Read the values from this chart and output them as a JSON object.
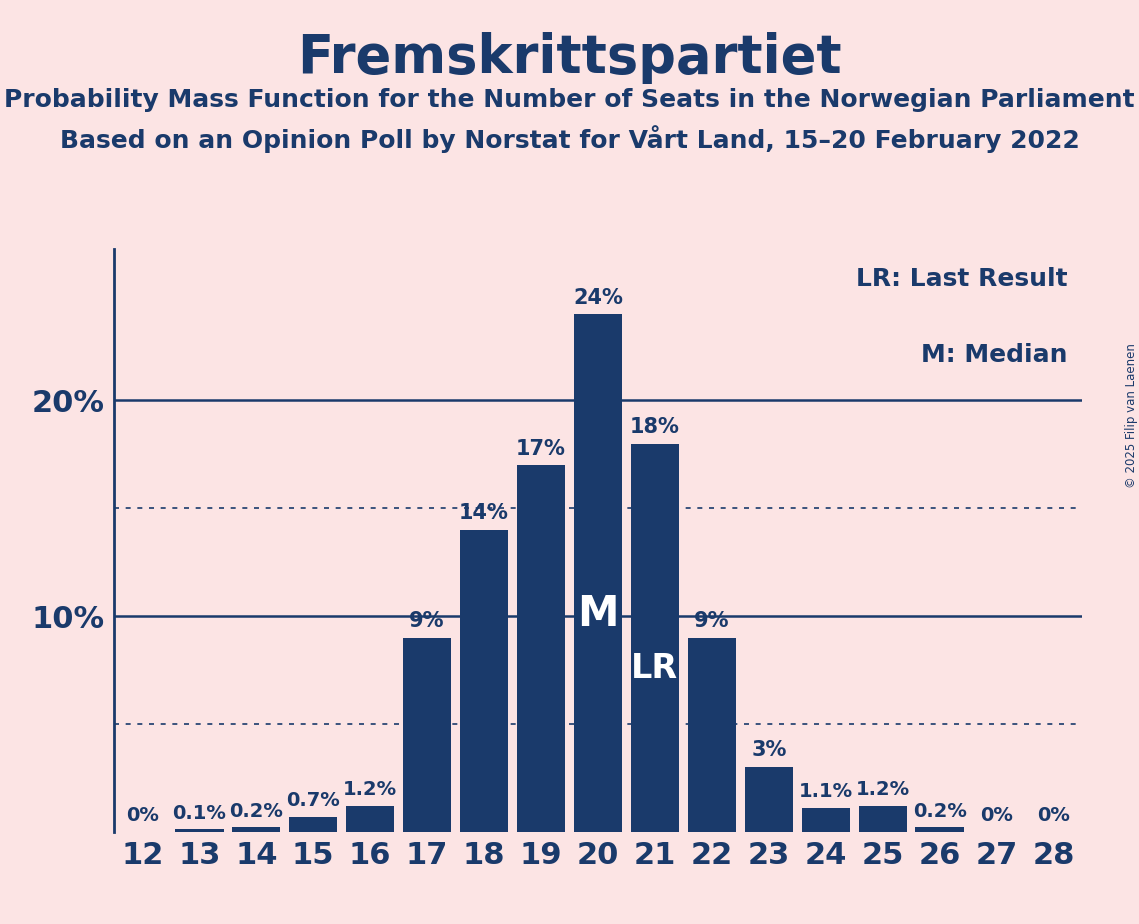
{
  "title": "Fremskrittspartiet",
  "subtitle1": "Probability Mass Function for the Number of Seats in the Norwegian Parliament",
  "subtitle2": "Based on an Opinion Poll by Norstat for Vårt Land, 15–20 February 2022",
  "copyright": "© 2025 Filip van Laenen",
  "seats": [
    12,
    13,
    14,
    15,
    16,
    17,
    18,
    19,
    20,
    21,
    22,
    23,
    24,
    25,
    26,
    27,
    28
  ],
  "probabilities": [
    0.0,
    0.1,
    0.2,
    0.7,
    1.2,
    9.0,
    14.0,
    17.0,
    24.0,
    18.0,
    9.0,
    3.0,
    1.1,
    1.2,
    0.2,
    0.0,
    0.0
  ],
  "bar_color": "#1a3a6b",
  "background_color": "#fce4e4",
  "text_color": "#1a3a6b",
  "median_seat": 20,
  "last_result_seat": 21,
  "legend_lr": "LR: Last Result",
  "legend_m": "M: Median",
  "dotted_lines": [
    5.0,
    15.0
  ],
  "ylim": [
    0,
    27
  ],
  "bar_labels": [
    "0%",
    "0.1%",
    "0.2%",
    "0.7%",
    "1.2%",
    "9%",
    "14%",
    "17%",
    "24%",
    "18%",
    "9%",
    "3%",
    "1.1%",
    "1.2%",
    "0.2%",
    "0%",
    "0%"
  ]
}
